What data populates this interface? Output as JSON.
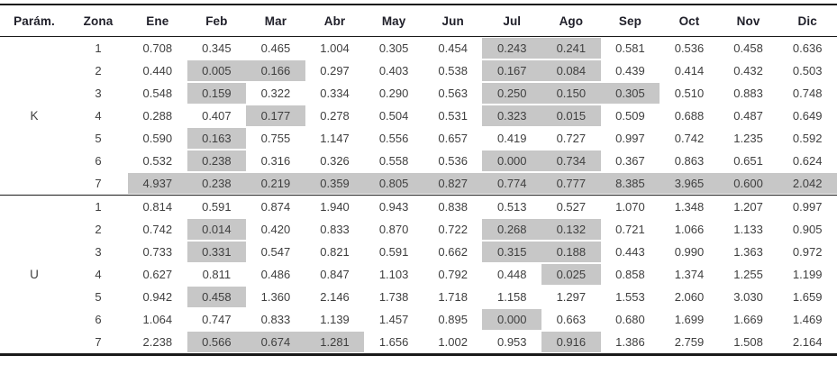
{
  "colors": {
    "highlight": "#c7c7c7",
    "rule_line": "#1a1a1a",
    "header_text": "#20202a",
    "value_text": "#3f3f3f"
  },
  "table": {
    "columns": [
      "Parám.",
      "Zona",
      "Ene",
      "Feb",
      "Mar",
      "Abr",
      "May",
      "Jun",
      "Jul",
      "Ago",
      "Sep",
      "Oct",
      "Nov",
      "Dic"
    ],
    "sections": [
      {
        "param": "K",
        "rows": [
          {
            "zona": "1",
            "values": [
              "0.708",
              "0.345",
              "0.465",
              "1.004",
              "0.305",
              "0.454",
              "0.243",
              "0.241",
              "0.581",
              "0.536",
              "0.458",
              "0.636"
            ],
            "highlighted": [
              6,
              7
            ]
          },
          {
            "zona": "2",
            "values": [
              "0.440",
              "0.005",
              "0.166",
              "0.297",
              "0.403",
              "0.538",
              "0.167",
              "0.084",
              "0.439",
              "0.414",
              "0.432",
              "0.503"
            ],
            "highlighted": [
              1,
              2,
              6,
              7
            ]
          },
          {
            "zona": "3",
            "values": [
              "0.548",
              "0.159",
              "0.322",
              "0.334",
              "0.290",
              "0.563",
              "0.250",
              "0.150",
              "0.305",
              "0.510",
              "0.883",
              "0.748"
            ],
            "highlighted": [
              1,
              6,
              7,
              8
            ]
          },
          {
            "zona": "4",
            "values": [
              "0.288",
              "0.407",
              "0.177",
              "0.278",
              "0.504",
              "0.531",
              "0.323",
              "0.015",
              "0.509",
              "0.688",
              "0.487",
              "0.649"
            ],
            "highlighted": [
              2,
              6,
              7
            ]
          },
          {
            "zona": "5",
            "values": [
              "0.590",
              "0.163",
              "0.755",
              "1.147",
              "0.556",
              "0.657",
              "0.419",
              "0.727",
              "0.997",
              "0.742",
              "1.235",
              "0.592"
            ],
            "highlighted": [
              1
            ]
          },
          {
            "zona": "6",
            "values": [
              "0.532",
              "0.238",
              "0.316",
              "0.326",
              "0.558",
              "0.536",
              "0.000",
              "0.734",
              "0.367",
              "0.863",
              "0.651",
              "0.624"
            ],
            "highlighted": [
              1,
              6,
              7
            ]
          },
          {
            "zona": "7",
            "values": [
              "4.937",
              "0.238",
              "0.219",
              "0.359",
              "0.805",
              "0.827",
              "0.774",
              "0.777",
              "8.385",
              "3.965",
              "0.600",
              "2.042"
            ],
            "highlighted": [
              0,
              1,
              2,
              3,
              4,
              5,
              6,
              7,
              8,
              9,
              10,
              11
            ]
          }
        ]
      },
      {
        "param": "U",
        "rows": [
          {
            "zona": "1",
            "values": [
              "0.814",
              "0.591",
              "0.874",
              "1.940",
              "0.943",
              "0.838",
              "0.513",
              "0.527",
              "1.070",
              "1.348",
              "1.207",
              "0.997"
            ],
            "highlighted": []
          },
          {
            "zona": "2",
            "values": [
              "0.742",
              "0.014",
              "0.420",
              "0.833",
              "0.870",
              "0.722",
              "0.268",
              "0.132",
              "0.721",
              "1.066",
              "1.133",
              "0.905"
            ],
            "highlighted": [
              1,
              6,
              7
            ]
          },
          {
            "zona": "3",
            "values": [
              "0.733",
              "0.331",
              "0.547",
              "0.821",
              "0.591",
              "0.662",
              "0.315",
              "0.188",
              "0.443",
              "0.990",
              "1.363",
              "0.972"
            ],
            "highlighted": [
              1,
              6,
              7
            ]
          },
          {
            "zona": "4",
            "values": [
              "0.627",
              "0.811",
              "0.486",
              "0.847",
              "1.103",
              "0.792",
              "0.448",
              "0.025",
              "0.858",
              "1.374",
              "1.255",
              "1.199"
            ],
            "highlighted": [
              7
            ]
          },
          {
            "zona": "5",
            "values": [
              "0.942",
              "0.458",
              "1.360",
              "2.146",
              "1.738",
              "1.718",
              "1.158",
              "1.297",
              "1.553",
              "2.060",
              "3.030",
              "1.659"
            ],
            "highlighted": [
              1
            ]
          },
          {
            "zona": "6",
            "values": [
              "1.064",
              "0.747",
              "0.833",
              "1.139",
              "1.457",
              "0.895",
              "0.000",
              "0.663",
              "0.680",
              "1.699",
              "1.669",
              "1.469"
            ],
            "highlighted": [
              6
            ]
          },
          {
            "zona": "7",
            "values": [
              "2.238",
              "0.566",
              "0.674",
              "1.281",
              "1.656",
              "1.002",
              "0.953",
              "0.916",
              "1.386",
              "2.759",
              "1.508",
              "2.164"
            ],
            "highlighted": [
              1,
              2,
              3,
              7
            ]
          }
        ]
      }
    ]
  }
}
